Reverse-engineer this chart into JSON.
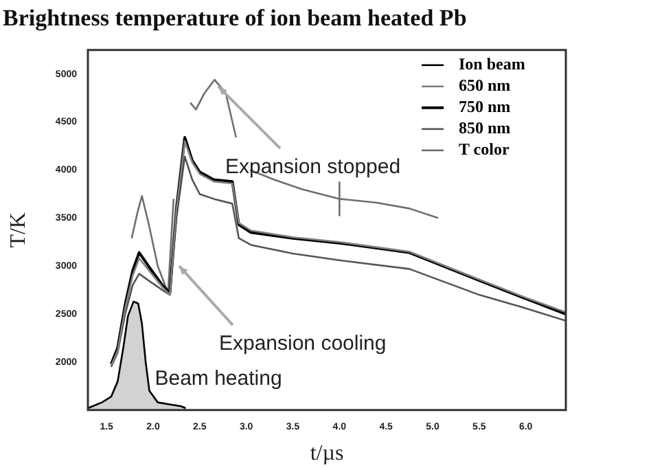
{
  "chart_data": {
    "type": "line",
    "title": "Brightness temperature of ion beam heated Pb",
    "xlabel": "t/µs",
    "ylabel": "T/K",
    "xlim": [
      1.3,
      6.43
    ],
    "ylim": [
      1500,
      5250
    ],
    "xticks": [
      1.5,
      {
        "value": 2,
        "label": "2.0"
      },
      2.5,
      {
        "value": 3,
        "label": "3.0"
      },
      3.5,
      {
        "value": 4,
        "label": "4.0"
      },
      4.5,
      {
        "value": 5,
        "label": "5.0"
      },
      5.5,
      {
        "value": 6,
        "label": "6.0"
      }
    ],
    "yticks": [
      2000,
      2500,
      3000,
      3500,
      4000,
      4500,
      5000
    ],
    "legend": "top right",
    "series": [
      {
        "name": "Ion beam",
        "type": "area",
        "color": "#000000",
        "x": [
          1.3,
          1.45,
          1.55,
          1.62,
          1.68,
          1.73,
          1.79,
          1.84,
          1.88,
          1.92,
          1.96,
          2.05,
          2.3,
          2.35
        ],
        "values": [
          1520,
          1580,
          1640,
          1800,
          2150,
          2480,
          2630,
          2610,
          2400,
          2000,
          1700,
          1580,
          1540,
          1520
        ]
      },
      {
        "name": "650 nm",
        "color": "#808080",
        "x": [
          1.55,
          1.62,
          1.7,
          1.78,
          1.85,
          1.95,
          2.1,
          2.18,
          2.25,
          2.34,
          2.42,
          2.5,
          2.65,
          2.85,
          2.92,
          3.05,
          3.5,
          4.0,
          4.75,
          5.5,
          6.0,
          6.43
        ],
        "values": [
          1960,
          2120,
          2560,
          2900,
          3080,
          2960,
          2780,
          2700,
          3580,
          4300,
          4080,
          3960,
          3880,
          3860,
          3450,
          3370,
          3300,
          3250,
          3150,
          2860,
          2670,
          2520
        ]
      },
      {
        "name": "750 nm",
        "color": "#000000",
        "x": [
          1.55,
          1.62,
          1.7,
          1.78,
          1.85,
          1.95,
          2.1,
          2.18,
          2.25,
          2.34,
          2.42,
          2.5,
          2.65,
          2.85,
          2.92,
          3.05,
          3.5,
          4.0,
          4.75,
          5.5,
          6.0,
          6.43
        ],
        "values": [
          1980,
          2150,
          2600,
          2950,
          3140,
          3000,
          2800,
          2720,
          3600,
          4340,
          4100,
          3980,
          3900,
          3880,
          3430,
          3350,
          3290,
          3240,
          3140,
          2850,
          2660,
          2500
        ]
      },
      {
        "name": "850 nm",
        "color": "#555555",
        "x": [
          1.55,
          1.62,
          1.7,
          1.78,
          1.85,
          1.95,
          2.1,
          2.18,
          2.25,
          2.34,
          2.42,
          2.5,
          2.65,
          2.85,
          2.92,
          3.05,
          3.5,
          4.0,
          4.75,
          5.5,
          6.0,
          6.43
        ],
        "values": [
          1950,
          2100,
          2500,
          2800,
          2920,
          2850,
          2750,
          2700,
          3500,
          4140,
          3900,
          3750,
          3700,
          3650,
          3290,
          3220,
          3130,
          3060,
          2970,
          2700,
          2560,
          2430
        ]
      },
      {
        "name": "T color",
        "color": "#6e6e6e",
        "x": [
          1.77,
          1.83,
          1.88,
          1.95,
          2.05,
          2.16,
          2.22,
          2.28,
          2.36,
          2.4,
          2.46,
          2.55,
          2.66,
          2.78,
          2.89,
          2.95,
          3.04,
          3.3,
          3.6,
          4.0,
          4.4,
          4.75,
          5.06
        ],
        "values": [
          3290,
          3550,
          3730,
          3450,
          3000,
          2720,
          3700,
          null,
          null,
          4700,
          4630,
          4800,
          4940,
          4800,
          4340,
          null,
          4000,
          3900,
          3800,
          3700,
          3660,
          3600,
          3500
        ],
        "errors": [
          null,
          null,
          null,
          null,
          null,
          null,
          null,
          null,
          null,
          null,
          null,
          null,
          null,
          null,
          null,
          null,
          null,
          null,
          null,
          180,
          null,
          null,
          null
        ]
      }
    ],
    "annotations": [
      {
        "text": "Expansion stopped",
        "x": 2.7,
        "y": 4870
      },
      {
        "text": "Expansion cooling",
        "x": 2.28,
        "y": 3000
      },
      "Beam heating"
    ]
  }
}
